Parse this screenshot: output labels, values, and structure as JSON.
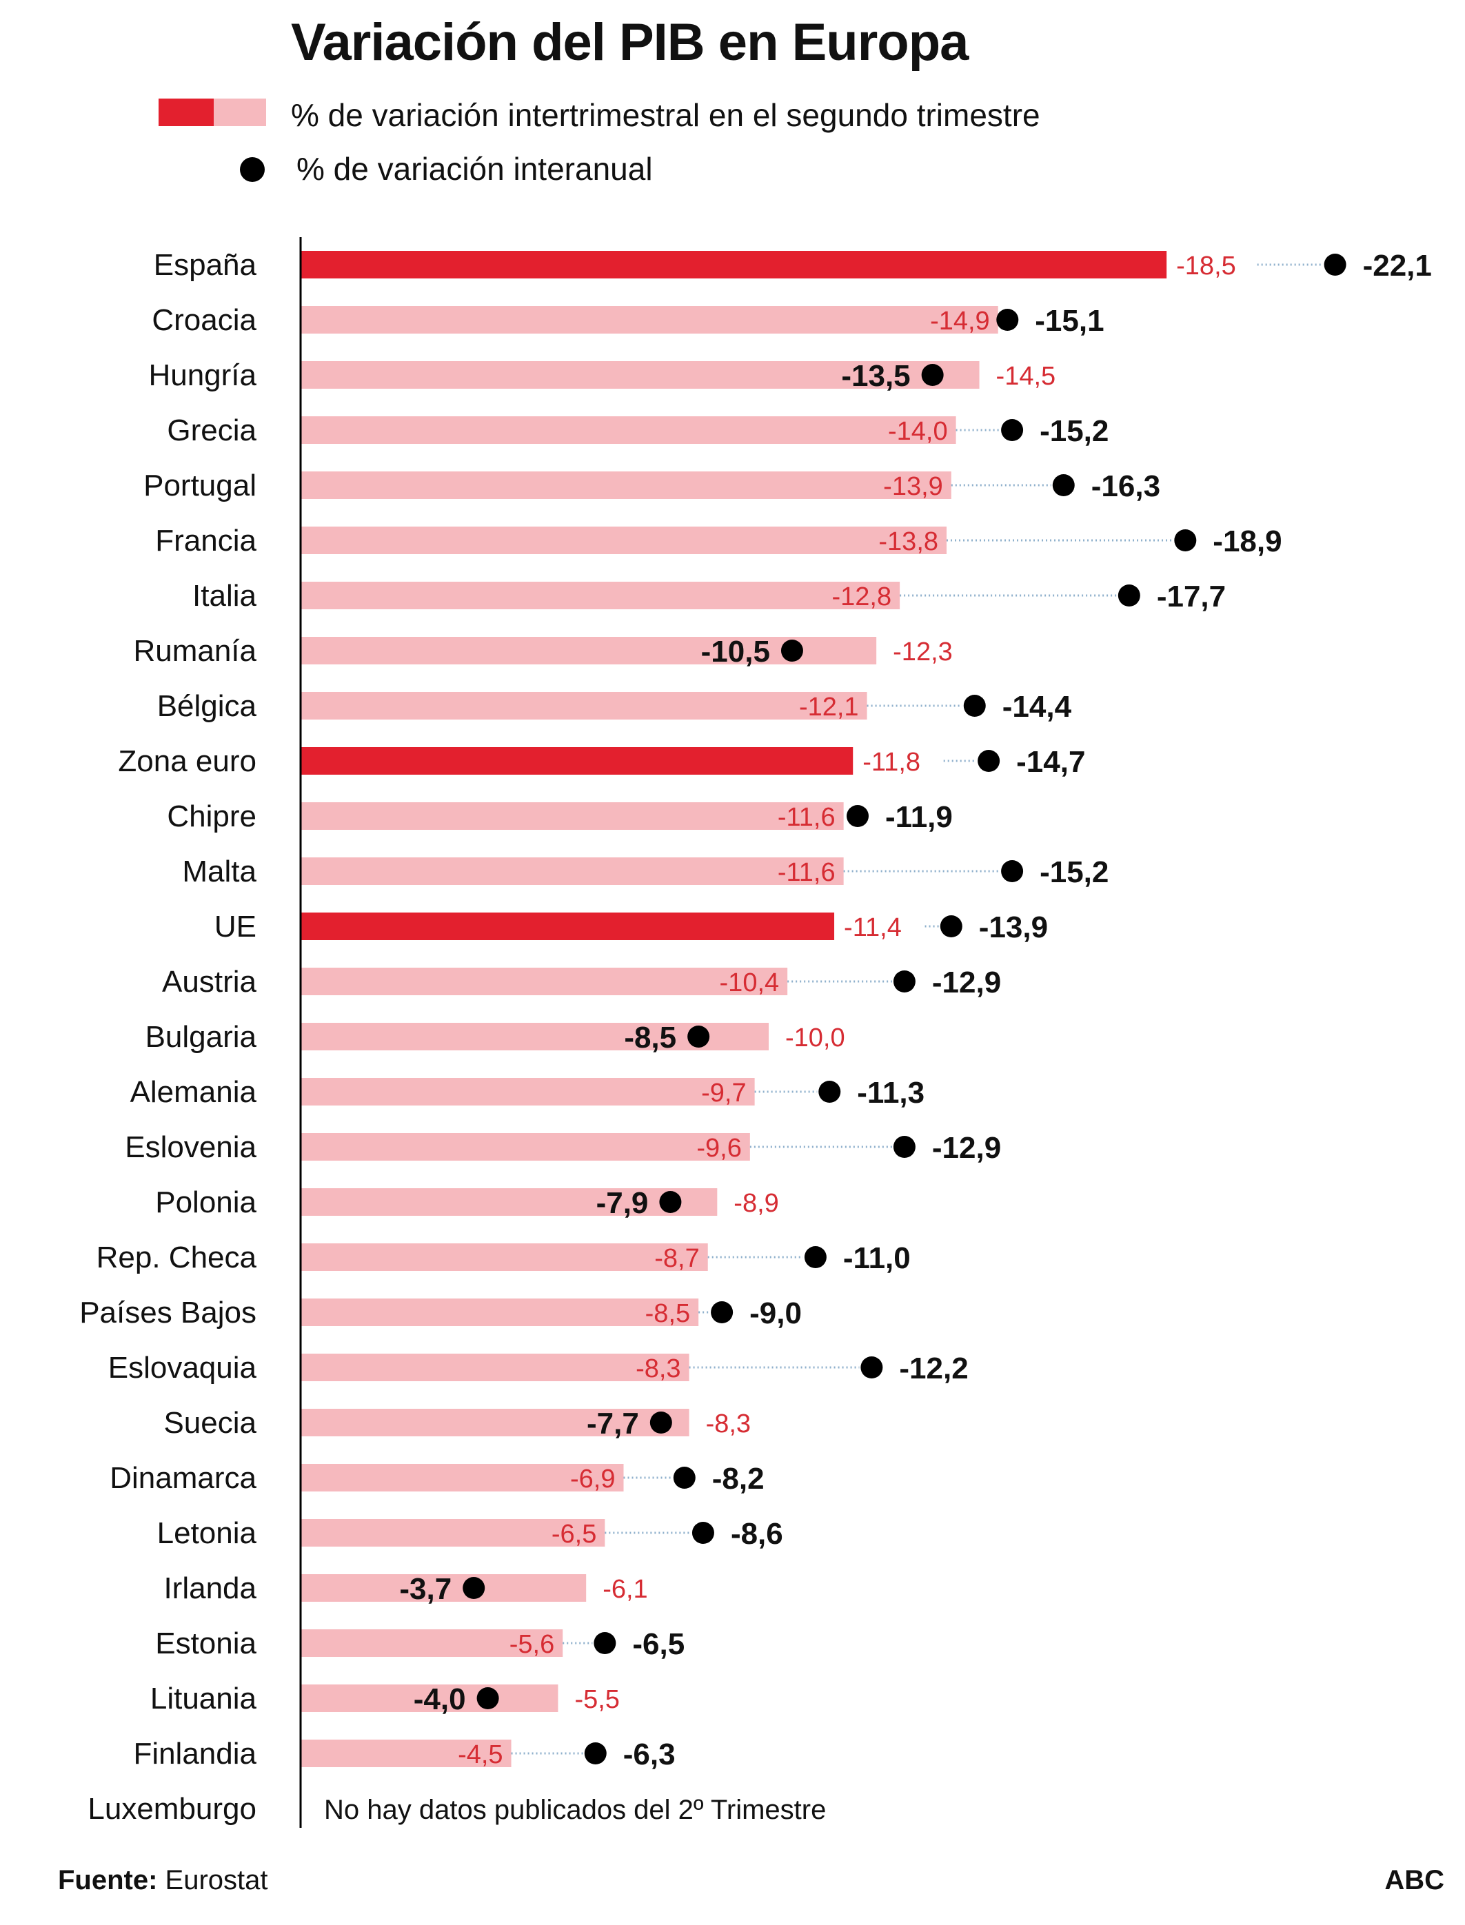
{
  "title": "Variación del PIB en Europa",
  "legend": {
    "bar_label": "% de variación intertrimestral en el segundo trimestre",
    "dot_label": "% de variación interanual"
  },
  "colors": {
    "highlight_bar": "#e3202e",
    "regular_bar": "#f6b9be",
    "quarterly_label": "#d62c33",
    "dot": "#000000",
    "connector": "#8fb0cc",
    "axis": "#000000"
  },
  "chart_data": {
    "type": "bar",
    "orientation": "horizontal",
    "title": "Variación del PIB en Europa",
    "xlabel": "",
    "ylabel": "",
    "xlim": [
      0,
      -22.1
    ],
    "categories": [
      "España",
      "Croacia",
      "Hungría",
      "Grecia",
      "Portugal",
      "Francia",
      "Italia",
      "Rumanía",
      "Bélgica",
      "Zona euro",
      "Chipre",
      "Malta",
      "UE",
      "Austria",
      "Bulgaria",
      "Alemania",
      "Eslovenia",
      "Polonia",
      "Rep. Checa",
      "Países Bajos",
      "Eslovaquia",
      "Suecia",
      "Dinamarca",
      "Letonia",
      "Irlanda",
      "Estonia",
      "Lituania",
      "Finlandia",
      "Luxemburgo"
    ],
    "series": [
      {
        "name": "% de variación intertrimestral en el segundo trimestre",
        "kind": "bar",
        "values": [
          -18.5,
          -14.9,
          -14.5,
          -14.0,
          -13.9,
          -13.8,
          -12.8,
          -12.3,
          -12.1,
          -11.8,
          -11.6,
          -11.6,
          -11.4,
          -10.4,
          -10.0,
          -9.7,
          -9.6,
          -8.9,
          -8.7,
          -8.5,
          -8.3,
          -8.3,
          -6.9,
          -6.5,
          -6.1,
          -5.6,
          -5.5,
          -4.5,
          null
        ],
        "labels": [
          "-18,5",
          "-14,9",
          "-14,5",
          "-14,0",
          "-13,9",
          "-13,8",
          "-12,8",
          "-12,3",
          "-12,1",
          "-11,8",
          "-11,6",
          "-11,6",
          "-11,4",
          "-10,4",
          "-10,0",
          "-9,7",
          "-9,6",
          "-8,9",
          "-8,7",
          "-8,5",
          "-8,3",
          "-8,3",
          "-6,9",
          "-6,5",
          "-6,1",
          "-5,6",
          "-5,5",
          "-4,5",
          ""
        ]
      },
      {
        "name": "% de variación interanual",
        "kind": "dot",
        "values": [
          -22.1,
          -15.1,
          -13.5,
          -15.2,
          -16.3,
          -18.9,
          -17.7,
          -10.5,
          -14.4,
          -14.7,
          -11.9,
          -15.2,
          -13.9,
          -12.9,
          -8.5,
          -11.3,
          -12.9,
          -7.9,
          -11.0,
          -9.0,
          -12.2,
          -7.7,
          -8.2,
          -8.6,
          -3.7,
          -6.5,
          -4.0,
          -6.3,
          null
        ],
        "labels": [
          "-22,1",
          "-15,1",
          "-13,5",
          "-15,2",
          "-16,3",
          "-18,9",
          "-17,7",
          "-10,5",
          "-14,4",
          "-14,7",
          "-11,9",
          "-15,2",
          "-13,9",
          "-12,9",
          "-8,5",
          "-11,3",
          "-12,9",
          "-7,9",
          "-11,0",
          "-9,0",
          "-12,2",
          "-7,7",
          "-8,2",
          "-8,6",
          "-3,7",
          "-6,5",
          "-4,0",
          "-6,3",
          ""
        ]
      }
    ],
    "highlighted": [
      "España",
      "Zona euro",
      "UE"
    ],
    "annotations": [
      {
        "category": "Luxemburgo",
        "text": "No hay datos publicados del 2º Trimestre"
      }
    ]
  },
  "footer": {
    "source_label": "Fuente:",
    "source_value": " Eurostat",
    "brand": "ABC"
  }
}
